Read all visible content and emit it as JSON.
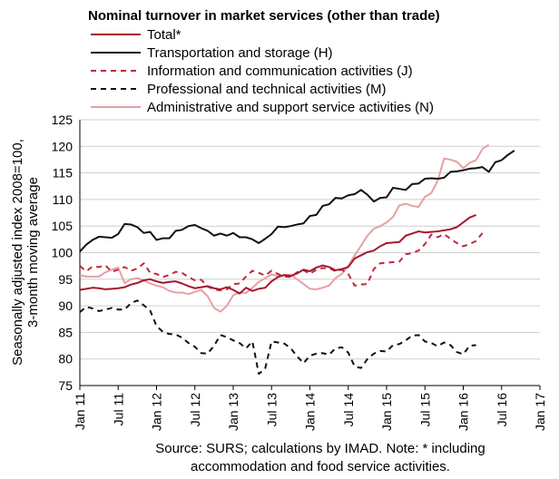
{
  "chart_data": {
    "type": "line",
    "title": "Nominal turnover in market services (other than trade)",
    "ylabel_line1": "Seasonally adjusted index 2008=100,",
    "ylabel_line2": "3-month moving average",
    "ylim": [
      75,
      125
    ],
    "y_ticks": [
      "75",
      "80",
      "85",
      "90",
      "95",
      "100",
      "105",
      "110",
      "115",
      "120",
      "125"
    ],
    "x_tick_labels": [
      "Jan 11",
      "Jul 11",
      "Jan 12",
      "Jul 12",
      "Jan 13",
      "Jul 13",
      "Jan 14",
      "Jul 14",
      "Jan 15",
      "Jul 15",
      "Jan 16",
      "Jul 16",
      "Jan 17"
    ],
    "x_start": "2011-01",
    "x_end": "2016-08",
    "grid": "horizontal",
    "legend_position": "top-left",
    "source_note_line1": "Source: SURS; calculations by IMAD. Note: * including",
    "source_note_line2": "accommodation and food service activities.",
    "series": [
      {
        "name": "Total*",
        "color": "#a6172e",
        "dash": "solid",
        "values": [
          93.0,
          93.2,
          93.4,
          93.3,
          93.1,
          93.2,
          93.3,
          93.5,
          94.0,
          94.3,
          94.8,
          95.0,
          94.6,
          94.3,
          94.5,
          94.6,
          94.2,
          93.7,
          93.3,
          93.5,
          93.7,
          93.3,
          93.1,
          93.5,
          93.0,
          92.3,
          93.4,
          92.8,
          93.2,
          93.4,
          94.6,
          95.4,
          95.8,
          95.6,
          96.1,
          96.8,
          96.5,
          97.2,
          97.6,
          97.3,
          96.7,
          96.9,
          97.3,
          98.9,
          99.5,
          100.1,
          100.4,
          101.2,
          101.8,
          101.9,
          102.0,
          103.2,
          103.6,
          104.0,
          103.8,
          103.9,
          104.0,
          104.2,
          104.4,
          104.8,
          105.7,
          106.6,
          107.1
        ]
      },
      {
        "name": "Transportation and storage (H)",
        "color": "#111111",
        "dash": "solid",
        "values": [
          100.2,
          101.5,
          102.4,
          103.0,
          102.9,
          102.8,
          103.5,
          105.4,
          105.3,
          104.8,
          103.7,
          103.9,
          102.4,
          102.7,
          102.7,
          104.1,
          104.3,
          105.0,
          105.2,
          104.6,
          104.1,
          103.2,
          103.6,
          103.2,
          103.7,
          102.9,
          102.9,
          102.5,
          101.8,
          102.6,
          103.5,
          104.9,
          104.8,
          105.0,
          105.3,
          105.5,
          106.9,
          107.1,
          108.8,
          109.1,
          110.3,
          110.2,
          110.8,
          111.0,
          111.8,
          110.9,
          109.6,
          110.3,
          110.4,
          112.2,
          112.0,
          111.8,
          112.9,
          113.0,
          113.9,
          114.0,
          113.9,
          114.1,
          115.2,
          115.3,
          115.5,
          115.8,
          115.9,
          116.1,
          115.2,
          117.0,
          117.4,
          118.4,
          119.2
        ]
      },
      {
        "name": "Information and communication activities (J)",
        "color": "#c0283a",
        "dash": "dashed",
        "values": [
          97.5,
          96.5,
          97.4,
          97.3,
          97.6,
          96.4,
          96.8,
          97.3,
          96.6,
          97.0,
          98.0,
          96.2,
          96.0,
          95.4,
          95.8,
          96.4,
          96.2,
          95.4,
          94.8,
          94.9,
          93.6,
          93.1,
          92.9,
          93.1,
          94.1,
          94.2,
          95.5,
          96.6,
          96.2,
          95.7,
          96.6,
          96.0,
          95.5,
          95.4,
          96.3,
          96.7,
          96.0,
          96.8,
          97.1,
          97.1,
          96.5,
          96.8,
          96.0,
          93.8,
          94.0,
          94.1,
          96.9,
          98.0,
          98.1,
          98.2,
          98.3,
          99.7,
          99.9,
          100.4,
          101.6,
          103.4,
          102.9,
          103.5,
          102.6,
          101.8,
          101.2,
          101.6,
          102.2,
          103.7
        ]
      },
      {
        "name": "Professional and technical activities (M)",
        "color": "#111111",
        "dash": "dashed",
        "values": [
          88.8,
          89.8,
          89.5,
          89.0,
          89.3,
          89.6,
          89.3,
          89.3,
          90.5,
          91.0,
          90.1,
          89.1,
          86.2,
          85.1,
          84.7,
          84.6,
          84.0,
          83.0,
          82.3,
          81.1,
          81.0,
          82.5,
          84.5,
          84.1,
          83.5,
          83.0,
          82.0,
          83.3,
          77.2,
          78.2,
          83.3,
          83.1,
          82.9,
          82.0,
          80.5,
          79.2,
          80.6,
          81.0,
          81.1,
          80.8,
          82.0,
          82.2,
          81.2,
          78.6,
          78.3,
          80.0,
          81.0,
          81.5,
          81.4,
          82.6,
          82.8,
          83.5,
          84.4,
          84.5,
          83.3,
          83.0,
          82.4,
          83.1,
          82.6,
          81.3,
          80.9,
          82.5,
          82.6
        ]
      },
      {
        "name": "Administrative and support service activities (N)",
        "color": "#e6a0a4",
        "dash": "solid",
        "values": [
          95.8,
          95.5,
          95.5,
          95.5,
          96.3,
          96.8,
          97.2,
          94.3,
          95.0,
          95.2,
          94.8,
          94.2,
          93.8,
          93.5,
          92.8,
          92.5,
          92.5,
          92.2,
          92.6,
          93.0,
          91.8,
          89.6,
          88.9,
          90.0,
          92.0,
          92.5,
          92.4,
          93.4,
          94.5,
          95.2,
          95.9,
          95.6,
          95.7,
          95.9,
          95.0,
          94.1,
          93.2,
          93.1,
          93.4,
          93.8,
          95.2,
          96.0,
          97.5,
          99.5,
          101.3,
          103.2,
          104.5,
          105.0,
          105.7,
          106.7,
          108.9,
          109.2,
          108.8,
          108.6,
          110.5,
          111.2,
          113.5,
          117.7,
          117.5,
          117.1,
          115.9,
          116.9,
          117.4,
          119.5,
          120.3
        ]
      }
    ]
  }
}
